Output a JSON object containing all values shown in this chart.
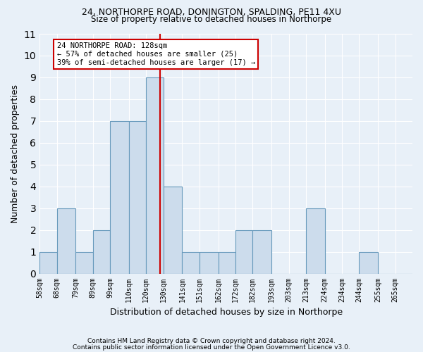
{
  "title1": "24, NORTHORPE ROAD, DONINGTON, SPALDING, PE11 4XU",
  "title2": "Size of property relative to detached houses in Northorpe",
  "xlabel": "Distribution of detached houses by size in Northorpe",
  "ylabel": "Number of detached properties",
  "bin_labels": [
    "58sqm",
    "68sqm",
    "79sqm",
    "89sqm",
    "99sqm",
    "110sqm",
    "120sqm",
    "130sqm",
    "141sqm",
    "151sqm",
    "162sqm",
    "172sqm",
    "182sqm",
    "193sqm",
    "203sqm",
    "213sqm",
    "224sqm",
    "234sqm",
    "244sqm",
    "255sqm",
    "265sqm"
  ],
  "bin_edges": [
    58,
    68,
    79,
    89,
    99,
    110,
    120,
    130,
    141,
    151,
    162,
    172,
    182,
    193,
    203,
    213,
    224,
    234,
    244,
    255,
    265,
    275
  ],
  "bar_heights": [
    1,
    3,
    1,
    2,
    7,
    7,
    9,
    4,
    1,
    1,
    1,
    2,
    2,
    0,
    0,
    3,
    0,
    0,
    1,
    0,
    0
  ],
  "bar_color": "#ccdcec",
  "bar_edgecolor": "#6699bb",
  "property_line": 128,
  "annotation_text": "24 NORTHORPE ROAD: 128sqm\n← 57% of detached houses are smaller (25)\n39% of semi-detached houses are larger (17) →",
  "annotation_box_facecolor": "#ffffff",
  "annotation_box_edgecolor": "#cc0000",
  "line_color": "#cc0000",
  "ylim": [
    0,
    11
  ],
  "yticks": [
    0,
    1,
    2,
    3,
    4,
    5,
    6,
    7,
    8,
    9,
    10,
    11
  ],
  "footer1": "Contains HM Land Registry data © Crown copyright and database right 2024.",
  "footer2": "Contains public sector information licensed under the Open Government Licence v3.0.",
  "background_color": "#e8f0f8",
  "plot_background": "#e8f0f8",
  "grid_color": "#ffffff",
  "annot_fontsize": 7.5,
  "title1_fontsize": 9,
  "title2_fontsize": 8.5,
  "ylabel_fontsize": 9,
  "xlabel_fontsize": 9,
  "tick_fontsize": 7,
  "footer_fontsize": 6.5
}
